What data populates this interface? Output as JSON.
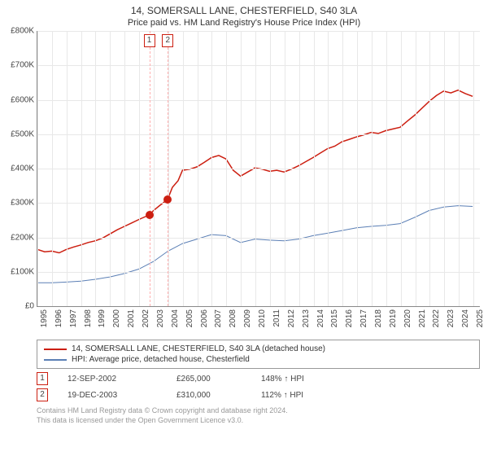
{
  "title": "14, SOMERSALL LANE, CHESTERFIELD, S40 3LA",
  "subtitle": "Price paid vs. HM Land Registry's House Price Index (HPI)",
  "chart": {
    "type": "line",
    "ylim": [
      0,
      800000
    ],
    "ytick_step": 100000,
    "y_labels": [
      "£0",
      "£100K",
      "£200K",
      "£300K",
      "£400K",
      "£500K",
      "£600K",
      "£700K",
      "£800K"
    ],
    "xlim": [
      1995,
      2025.5
    ],
    "x_labels": [
      "1995",
      "1996",
      "1997",
      "1998",
      "1999",
      "2000",
      "2001",
      "2002",
      "2003",
      "2004",
      "2005",
      "2006",
      "2007",
      "2008",
      "2009",
      "2010",
      "2011",
      "2012",
      "2013",
      "2014",
      "2015",
      "2016",
      "2017",
      "2018",
      "2019",
      "2020",
      "2021",
      "2022",
      "2023",
      "2024",
      "2025"
    ],
    "grid_color": "#e8e8e8",
    "background_color": "#ffffff",
    "markers": [
      {
        "n": "1",
        "x": 2002.7,
        "y": 265000,
        "color": "#cc1e10"
      },
      {
        "n": "2",
        "x": 2003.97,
        "y": 310000,
        "color": "#cc1e10"
      }
    ],
    "series": [
      {
        "name": "property",
        "label": "14, SOMERSALL LANE, CHESTERFIELD, S40 3LA (detached house)",
        "color": "#cc1e10",
        "width": 1.5,
        "data": [
          [
            1995,
            165000
          ],
          [
            1995.5,
            158000
          ],
          [
            1996,
            160000
          ],
          [
            1996.5,
            155000
          ],
          [
            1997,
            165000
          ],
          [
            1997.5,
            172000
          ],
          [
            1998,
            178000
          ],
          [
            1998.5,
            185000
          ],
          [
            1999,
            190000
          ],
          [
            1999.5,
            198000
          ],
          [
            2000,
            210000
          ],
          [
            2000.5,
            222000
          ],
          [
            2001,
            232000
          ],
          [
            2001.5,
            242000
          ],
          [
            2002,
            252000
          ],
          [
            2002.7,
            265000
          ],
          [
            2003,
            278000
          ],
          [
            2003.5,
            295000
          ],
          [
            2003.97,
            310000
          ],
          [
            2004.3,
            345000
          ],
          [
            2004.7,
            365000
          ],
          [
            2005,
            395000
          ],
          [
            2005.5,
            398000
          ],
          [
            2006,
            405000
          ],
          [
            2006.5,
            418000
          ],
          [
            2007,
            432000
          ],
          [
            2007.5,
            438000
          ],
          [
            2008,
            428000
          ],
          [
            2008.5,
            395000
          ],
          [
            2009,
            378000
          ],
          [
            2009.5,
            390000
          ],
          [
            2010,
            402000
          ],
          [
            2010.5,
            398000
          ],
          [
            2011,
            392000
          ],
          [
            2011.5,
            395000
          ],
          [
            2012,
            390000
          ],
          [
            2012.5,
            398000
          ],
          [
            2013,
            408000
          ],
          [
            2013.5,
            420000
          ],
          [
            2014,
            432000
          ],
          [
            2014.5,
            445000
          ],
          [
            2015,
            458000
          ],
          [
            2015.5,
            465000
          ],
          [
            2016,
            478000
          ],
          [
            2016.5,
            485000
          ],
          [
            2017,
            492000
          ],
          [
            2017.5,
            498000
          ],
          [
            2018,
            505000
          ],
          [
            2018.5,
            502000
          ],
          [
            2019,
            510000
          ],
          [
            2019.5,
            515000
          ],
          [
            2020,
            520000
          ],
          [
            2020.5,
            538000
          ],
          [
            2021,
            555000
          ],
          [
            2021.5,
            575000
          ],
          [
            2022,
            595000
          ],
          [
            2022.5,
            612000
          ],
          [
            2023,
            625000
          ],
          [
            2023.5,
            620000
          ],
          [
            2024,
            628000
          ],
          [
            2024.5,
            618000
          ],
          [
            2025,
            610000
          ]
        ]
      },
      {
        "name": "hpi",
        "label": "HPI: Average price, detached house, Chesterfield",
        "color": "#5b7fb5",
        "width": 1,
        "data": [
          [
            1995,
            68000
          ],
          [
            1996,
            68000
          ],
          [
            1997,
            70000
          ],
          [
            1998,
            73000
          ],
          [
            1999,
            78000
          ],
          [
            2000,
            85000
          ],
          [
            2001,
            95000
          ],
          [
            2002,
            108000
          ],
          [
            2003,
            130000
          ],
          [
            2004,
            160000
          ],
          [
            2005,
            182000
          ],
          [
            2006,
            195000
          ],
          [
            2007,
            208000
          ],
          [
            2008,
            205000
          ],
          [
            2009,
            185000
          ],
          [
            2010,
            195000
          ],
          [
            2011,
            192000
          ],
          [
            2012,
            190000
          ],
          [
            2013,
            195000
          ],
          [
            2014,
            205000
          ],
          [
            2015,
            212000
          ],
          [
            2016,
            220000
          ],
          [
            2017,
            228000
          ],
          [
            2018,
            232000
          ],
          [
            2019,
            235000
          ],
          [
            2020,
            240000
          ],
          [
            2021,
            258000
          ],
          [
            2022,
            278000
          ],
          [
            2023,
            288000
          ],
          [
            2024,
            292000
          ],
          [
            2025,
            290000
          ]
        ]
      }
    ]
  },
  "legend": [
    {
      "color": "#cc1e10",
      "label": "14, SOMERSALL LANE, CHESTERFIELD, S40 3LA (detached house)"
    },
    {
      "color": "#5b7fb5",
      "label": "HPI: Average price, detached house, Chesterfield"
    }
  ],
  "sales": [
    {
      "n": "1",
      "border": "#cc1e10",
      "date": "12-SEP-2002",
      "price": "£265,000",
      "hpi": "148% ↑ HPI"
    },
    {
      "n": "2",
      "border": "#cc1e10",
      "date": "19-DEC-2003",
      "price": "£310,000",
      "hpi": "112% ↑ HPI"
    }
  ],
  "footer": {
    "line1": "Contains HM Land Registry data © Crown copyright and database right 2024.",
    "line2": "This data is licensed under the Open Government Licence v3.0."
  }
}
